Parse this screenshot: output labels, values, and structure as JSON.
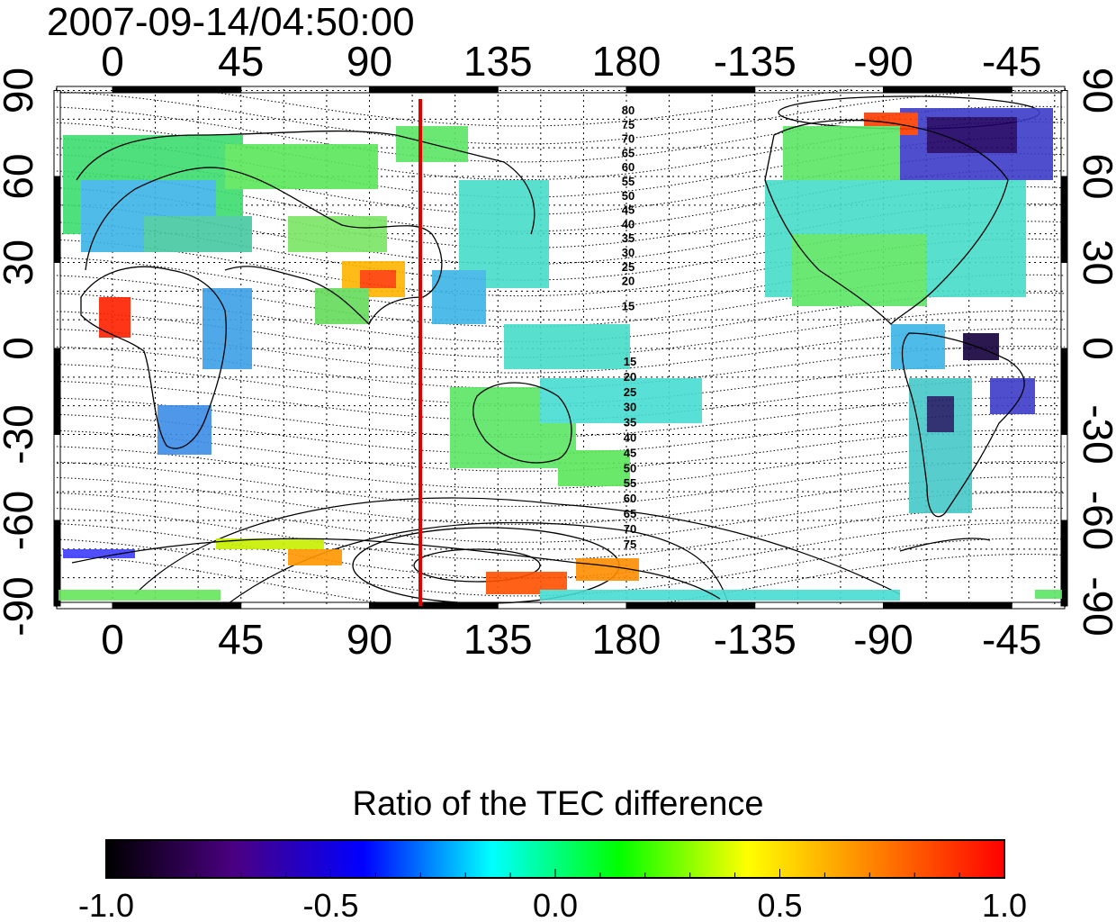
{
  "timestamp": "2007-09-14/04:50:00",
  "map": {
    "x_ticks": [
      "0",
      "45",
      "90",
      "135",
      "180",
      "-135",
      "-90",
      "-45"
    ],
    "y_ticks": [
      "90",
      "60",
      "30",
      "0",
      "-30",
      "-60",
      "-90"
    ],
    "contour_labels_north": [
      "80",
      "75",
      "70",
      "65",
      "60",
      "55",
      "50",
      "45",
      "40",
      "35",
      "30",
      "25",
      "20",
      "15"
    ],
    "contour_labels_south": [
      "15",
      "20",
      "25",
      "30",
      "35",
      "40",
      "45",
      "50",
      "55",
      "60",
      "65",
      "70",
      "75"
    ],
    "marker_line_color": "#e00000"
  },
  "colorbar": {
    "title": "Ratio of the TEC difference",
    "labels": [
      "-1.0",
      "-0.5",
      "0.0",
      "0.5",
      "1.0"
    ],
    "colors": [
      "#000000",
      "#4b0082",
      "#0000ff",
      "#00ffff",
      "#00ff00",
      "#ffff00",
      "#ff8000",
      "#ff0000"
    ]
  }
}
